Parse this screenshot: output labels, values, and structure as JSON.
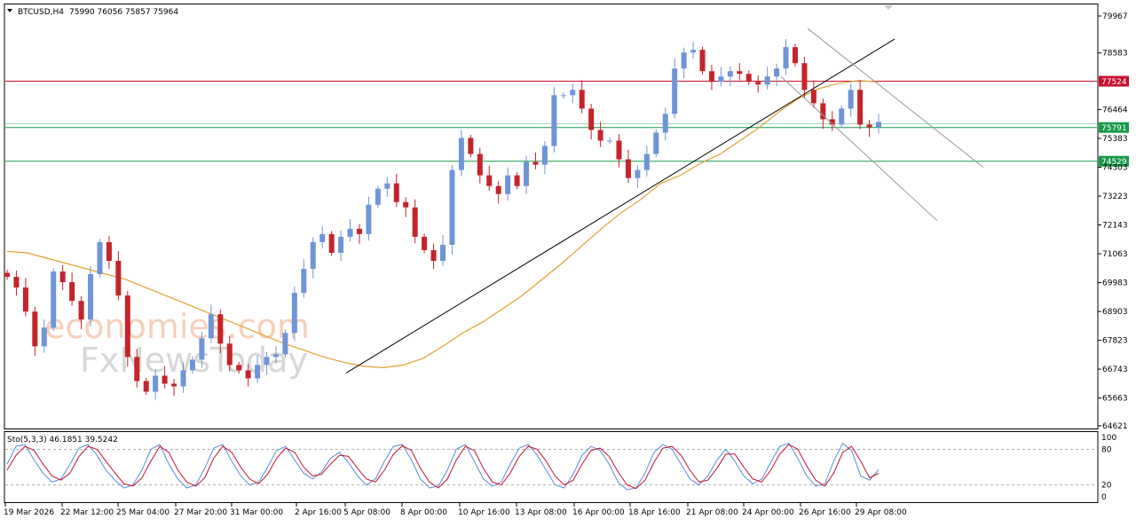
{
  "header": {
    "symbol": "BTCUSD,H4",
    "ohlc": "75990 76056 75857 75964",
    "triangle_icon": "dropdown-triangle-icon"
  },
  "watermark": {
    "line1": "economies.com",
    "line2": "FxNewsToday"
  },
  "colors": {
    "bull": "#6f94d8",
    "bear": "#c4242c",
    "ma": "#e3a132",
    "resistance": "#c8102e",
    "support": "#179a4a",
    "trendline": "#000000",
    "channel": "#9a9a9a",
    "stoch_main": "#5b8bd8",
    "stoch_signal": "#c8102e",
    "frame": "#000000",
    "text": "#000000"
  },
  "chart_data": [
    {
      "type": "line",
      "title": "BTCUSD,H4",
      "subtitle": "75990 76056 75857 75964",
      "ylim": [
        64621,
        79967
      ],
      "y_ticks": [
        "79967",
        "78583",
        "76464",
        "75383",
        "74303",
        "73223",
        "72143",
        "71063",
        "69983",
        "68903",
        "67823",
        "66743",
        "65663",
        "64621"
      ],
      "x_ticks": [
        "19 Mar 2026",
        "22 Mar 12:00",
        "25 Mar 04:00",
        "27 Mar 20:00",
        "31 Mar 00:00",
        "2 Apr 16:00",
        "5 Apr 08:00",
        "8 Apr 00:00",
        "10 Apr 16:00",
        "13 Apr 08:00",
        "16 Apr 00:00",
        "18 Apr 16:00",
        "21 Apr 08:00",
        "24 Apr 00:00",
        "26 Apr 16:00",
        "29 Apr 08:00"
      ],
      "series": [
        {
          "values": [
            70200,
            69800,
            68900,
            67600,
            68300,
            70400,
            70000,
            69300,
            68600,
            70300,
            71500,
            70800,
            69500,
            67200,
            66300,
            65900,
            66500,
            66200,
            66100,
            66700,
            67100,
            67900,
            68800,
            67700,
            66900,
            66700,
            66400,
            66900,
            67200,
            67300,
            68100,
            69600,
            70500,
            71500,
            71800,
            71100,
            71700,
            72000,
            71800,
            72900,
            73500,
            73700,
            73000,
            72800,
            71700,
            71200,
            70800,
            71400,
            74200,
            75400,
            74800,
            74000,
            73600,
            73300,
            74000,
            73600,
            74500,
            74400,
            75100,
            77000,
            77000,
            77200,
            76500,
            75700,
            75300,
            75300,
            74600,
            73900,
            74200,
            74800,
            75600,
            76300,
            78000,
            78600,
            78700,
            77900,
            77500,
            77700,
            77900,
            77800,
            77500,
            77400,
            77700,
            78000,
            78800,
            78200,
            77200,
            76700,
            76100,
            75900,
            76500,
            77200,
            75900,
            75800,
            76000
          ]
        },
        {
          "name": "MA",
          "values": [
            71150,
            71100,
            70900,
            70700,
            70500,
            70300,
            70100,
            69800,
            69500,
            69200,
            68900,
            68600,
            68300,
            68000,
            67700,
            67450,
            67200,
            67000,
            66850,
            66800,
            66900,
            67150,
            67600,
            68100,
            68500,
            69000,
            69500,
            70100,
            70700,
            71350,
            72000,
            72600,
            73100,
            73700,
            74000,
            74450,
            74800,
            75300,
            75800,
            76400,
            76900,
            77250,
            77450,
            77550,
            77500
          ]
        }
      ],
      "lines": {
        "resistance": 77524,
        "resistance_label": "77524",
        "support1": 75791,
        "support1_label": "75791",
        "support2": 74529,
        "support2_label": "74529",
        "trendline": [
          [
            66600,
            79100
          ]
        ],
        "channel": [
          [
            79500,
            74300
          ],
          [
            77700,
            72300
          ]
        ]
      }
    },
    {
      "type": "line",
      "title": "Sto(5,3,3) 46.1851 39.5242",
      "ylim": [
        0,
        100
      ],
      "y_ticks": [
        "100",
        "80",
        "20",
        "0"
      ],
      "levels": [
        80,
        20
      ],
      "series": [
        {
          "name": "%K",
          "values": [
            55,
            85,
            88,
            62,
            40,
            25,
            30,
            55,
            82,
            88,
            70,
            45,
            28,
            15,
            20,
            45,
            80,
            88,
            55,
            30,
            15,
            20,
            48,
            82,
            88,
            60,
            35,
            20,
            25,
            50,
            78,
            85,
            62,
            40,
            30,
            42,
            65,
            75,
            58,
            35,
            20,
            30,
            60,
            85,
            88,
            62,
            30,
            15,
            18,
            45,
            80,
            88,
            60,
            30,
            18,
            25,
            55,
            82,
            88,
            70,
            45,
            20,
            15,
            38,
            70,
            85,
            78,
            55,
            25,
            12,
            15,
            40,
            75,
            88,
            80,
            55,
            30,
            20,
            35,
            62,
            80,
            60,
            35,
            22,
            30,
            58,
            85,
            90,
            65,
            35,
            18,
            22,
            60,
            90,
            78,
            35,
            28,
            46
          ]
        },
        {
          "name": "%D",
          "values": [
            45,
            70,
            85,
            78,
            55,
            35,
            28,
            40,
            68,
            85,
            80,
            60,
            40,
            22,
            18,
            32,
            60,
            85,
            75,
            45,
            25,
            18,
            32,
            65,
            85,
            75,
            50,
            30,
            22,
            38,
            65,
            82,
            75,
            50,
            35,
            38,
            55,
            70,
            68,
            48,
            30,
            25,
            45,
            72,
            86,
            78,
            48,
            25,
            15,
            30,
            62,
            85,
            78,
            48,
            25,
            20,
            40,
            68,
            85,
            80,
            60,
            35,
            20,
            28,
            55,
            78,
            82,
            68,
            42,
            20,
            14,
            28,
            58,
            82,
            85,
            70,
            45,
            25,
            28,
            48,
            72,
            72,
            50,
            30,
            25,
            45,
            72,
            88,
            80,
            52,
            28,
            18,
            40,
            75,
            85,
            60,
            32,
            39.5
          ]
        }
      ]
    }
  ]
}
